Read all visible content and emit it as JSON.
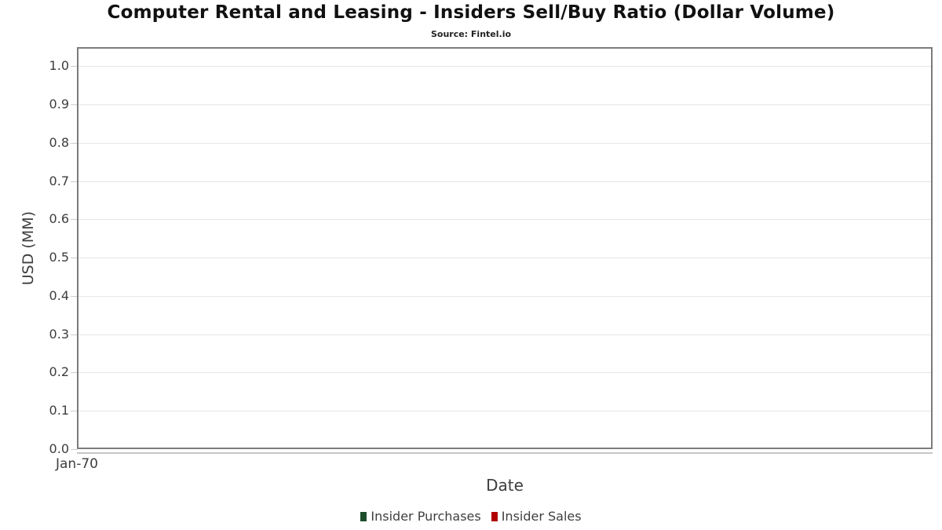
{
  "chart_data": {
    "type": "bar",
    "title": "Computer Rental and Leasing - Insiders Sell/Buy Ratio (Dollar Volume)",
    "subtitle": "Source: Fintel.io",
    "xlabel": "Date",
    "ylabel": "USD (MM)",
    "categories": [
      "Jan-70"
    ],
    "series": [
      {
        "name": "Insider Purchases",
        "color": "#1d4e2b",
        "values": []
      },
      {
        "name": "Insider Sales",
        "color": "#b00000",
        "values": []
      }
    ],
    "ylim": [
      0,
      1.05
    ],
    "yticks": [
      "0.0",
      "0.1",
      "0.2",
      "0.3",
      "0.4",
      "0.5",
      "0.6",
      "0.7",
      "0.8",
      "0.9",
      "1.0"
    ],
    "grid": true,
    "legend_position": "bottom"
  },
  "colors": {
    "grid": "#e6e6e6",
    "plot_border": "#7c7c7c",
    "axis_underline": "#c6c6c6",
    "tick_mark": "#cccccc",
    "axis_text": "#3d3d3d",
    "title_text": "#111111"
  }
}
